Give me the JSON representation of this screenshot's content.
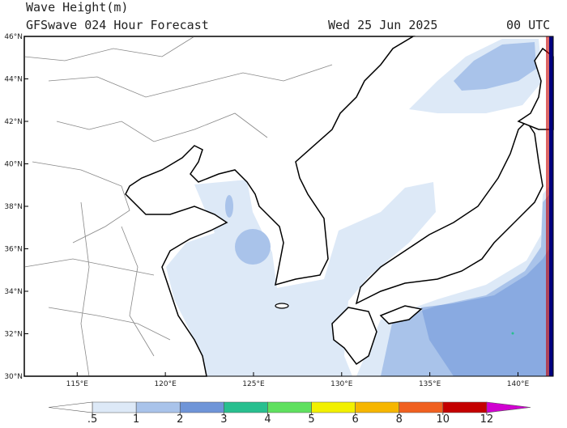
{
  "header": {
    "title": "Wave Height(m)",
    "subtitle": "GFSwave 024 Hour Forecast",
    "date": "Wed 25 Jun 2025",
    "time": "00 UTC"
  },
  "map": {
    "lon_range": [
      112,
      142
    ],
    "lat_range": [
      30,
      46
    ],
    "lat_ticks": [
      {
        "value": 46,
        "label": "46°N"
      },
      {
        "value": 44,
        "label": "44°N"
      },
      {
        "value": 42,
        "label": "42°N"
      },
      {
        "value": 40,
        "label": "40°N"
      },
      {
        "value": 38,
        "label": "38°N"
      },
      {
        "value": 36,
        "label": "36°N"
      },
      {
        "value": 34,
        "label": "34°N"
      },
      {
        "value": 32,
        "label": "32°N"
      },
      {
        "value": 30,
        "label": "30°N"
      }
    ],
    "lon_ticks": [
      {
        "value": 115,
        "label": "115°E"
      },
      {
        "value": 120,
        "label": "120°E"
      },
      {
        "value": 125,
        "label": "125°E"
      },
      {
        "value": 130,
        "label": "130°E"
      },
      {
        "value": 135,
        "label": "135°E"
      },
      {
        "value": 140,
        "label": "140°E"
      }
    ]
  },
  "colorbar": {
    "levels": [
      {
        "value": 0.5,
        "label": ".5"
      },
      1,
      2,
      3,
      4,
      5,
      6,
      8,
      10,
      12
    ],
    "colors": [
      "#ffffff",
      "#dde9f7",
      "#a9c3ea",
      "#6f95d8",
      "#28bf8f",
      "#5fe05f",
      "#f2f000",
      "#f6b600",
      "#f06020",
      "#c40000",
      "#d000d0"
    ]
  }
}
